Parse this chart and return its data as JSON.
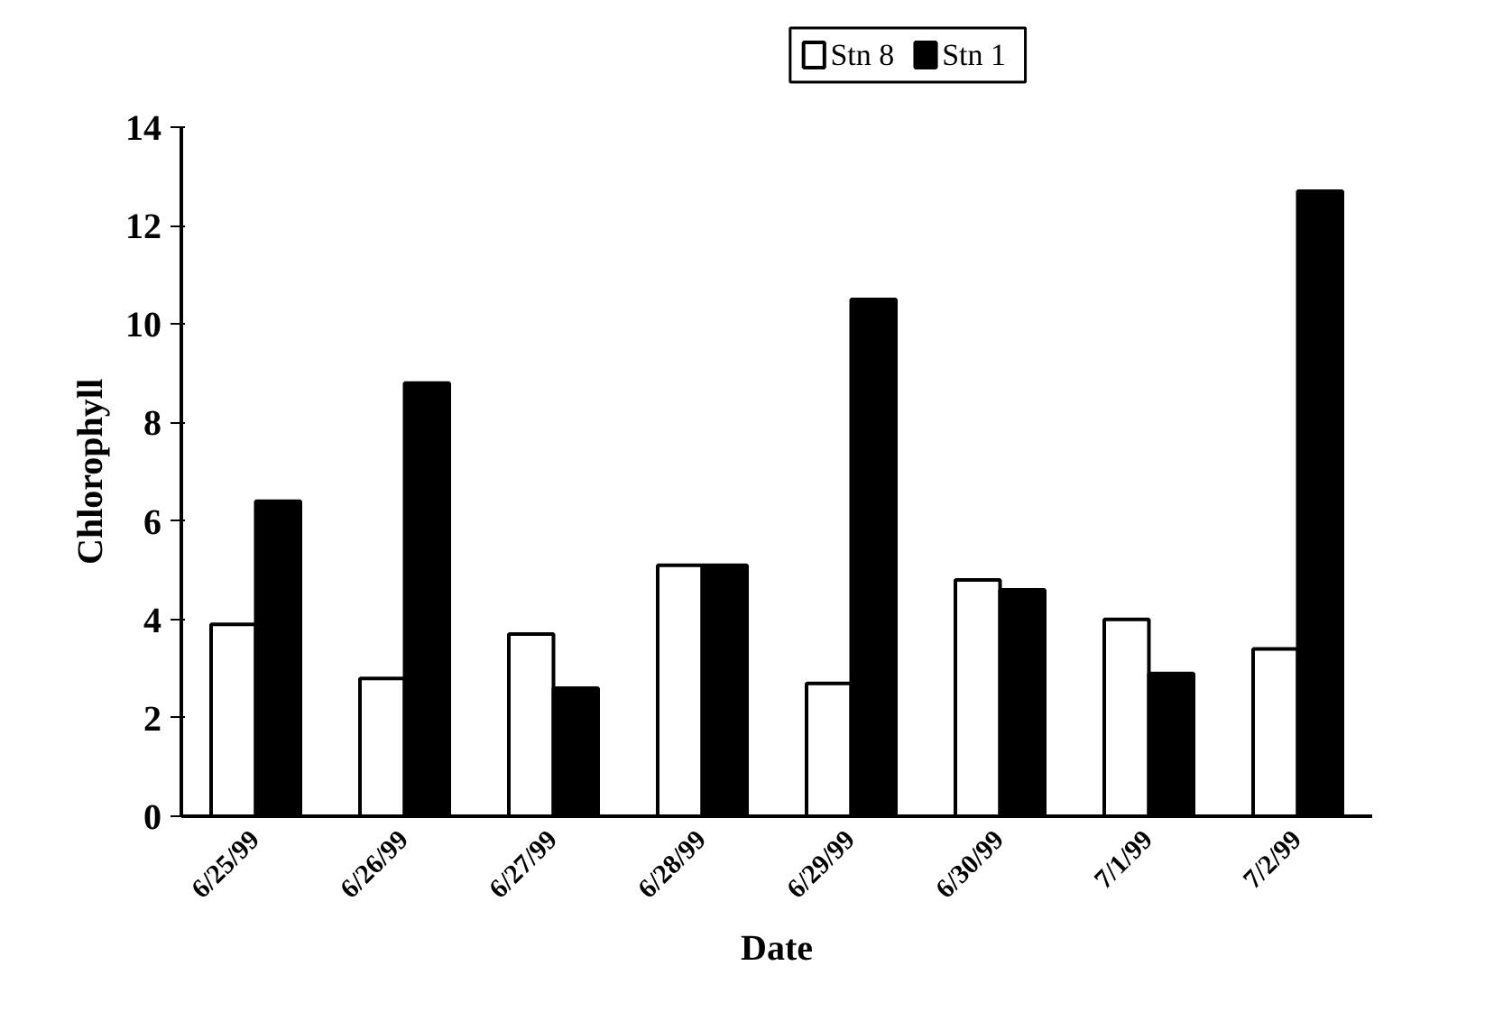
{
  "chart_data": {
    "type": "bar",
    "xlabel": "Date",
    "ylabel": "Chlorophyll",
    "categories": [
      "6/25/99",
      "6/26/99",
      "6/27/99",
      "6/28/99",
      "6/29/99",
      "6/30/99",
      "7/1/99",
      "7/2/99"
    ],
    "series": [
      {
        "name": "Stn 8",
        "color": "#ffffff",
        "values": [
          3.9,
          2.8,
          3.7,
          5.1,
          2.7,
          4.8,
          4.0,
          3.4
        ]
      },
      {
        "name": "Stn 1",
        "color": "#000000",
        "values": [
          6.4,
          8.8,
          2.6,
          5.1,
          10.5,
          4.6,
          2.9,
          12.7
        ]
      }
    ],
    "ylim": [
      0,
      14
    ],
    "yticks": [
      0,
      2,
      4,
      6,
      8,
      10,
      12,
      14
    ],
    "grid": false,
    "legend": "top"
  }
}
